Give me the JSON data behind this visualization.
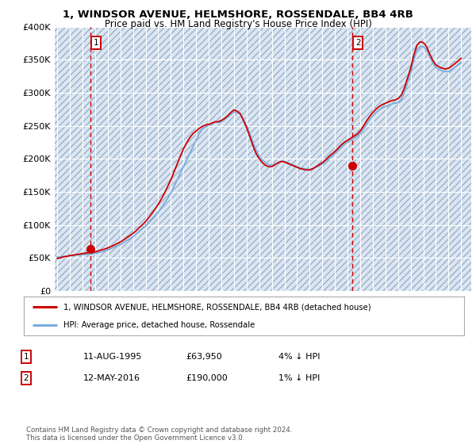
{
  "title_line1": "1, WINDSOR AVENUE, HELMSHORE, ROSSENDALE, BB4 4RB",
  "title_line2": "Price paid vs. HM Land Registry's House Price Index (HPI)",
  "background_color": "#ffffff",
  "plot_bg_color": "#dce6f1",
  "grid_color": "#ffffff",
  "purchase1_date": 1995.62,
  "purchase1_price": 63950,
  "purchase1_label": "1",
  "purchase2_date": 2016.37,
  "purchase2_price": 190000,
  "purchase2_label": "2",
  "xmin": 1992.8,
  "xmax": 2025.8,
  "ymin": 0,
  "ymax": 400000,
  "yticks": [
    0,
    50000,
    100000,
    150000,
    200000,
    250000,
    300000,
    350000,
    400000
  ],
  "ytick_labels": [
    "£0",
    "£50K",
    "£100K",
    "£150K",
    "£200K",
    "£250K",
    "£300K",
    "£350K",
    "£400K"
  ],
  "line1_color": "#cc0000",
  "line2_color": "#7aaddd",
  "marker_color": "#cc0000",
  "vline_color": "#cc0000",
  "legend_line1": "1, WINDSOR AVENUE, HELMSHORE, ROSSENDALE, BB4 4RB (detached house)",
  "legend_line2": "HPI: Average price, detached house, Rossendale",
  "table_row1": [
    "1",
    "11-AUG-1995",
    "£63,950",
    "4% ↓ HPI"
  ],
  "table_row2": [
    "2",
    "12-MAY-2016",
    "£190,000",
    "1% ↓ HPI"
  ],
  "footer": "Contains HM Land Registry data © Crown copyright and database right 2024.\nThis data is licensed under the Open Government Licence v3.0.",
  "hpi_x": [
    1993.0,
    1993.25,
    1993.5,
    1993.75,
    1994.0,
    1994.25,
    1994.5,
    1994.75,
    1995.0,
    1995.25,
    1995.5,
    1995.75,
    1996.0,
    1996.25,
    1996.5,
    1996.75,
    1997.0,
    1997.25,
    1997.5,
    1997.75,
    1998.0,
    1998.25,
    1998.5,
    1998.75,
    1999.0,
    1999.25,
    1999.5,
    1999.75,
    2000.0,
    2000.25,
    2000.5,
    2000.75,
    2001.0,
    2001.25,
    2001.5,
    2001.75,
    2002.0,
    2002.25,
    2002.5,
    2002.75,
    2003.0,
    2003.25,
    2003.5,
    2003.75,
    2004.0,
    2004.25,
    2004.5,
    2004.75,
    2005.0,
    2005.25,
    2005.5,
    2005.75,
    2006.0,
    2006.25,
    2006.5,
    2006.75,
    2007.0,
    2007.25,
    2007.5,
    2007.75,
    2008.0,
    2008.25,
    2008.5,
    2008.75,
    2009.0,
    2009.25,
    2009.5,
    2009.75,
    2010.0,
    2010.25,
    2010.5,
    2010.75,
    2011.0,
    2011.25,
    2011.5,
    2011.75,
    2012.0,
    2012.25,
    2012.5,
    2012.75,
    2013.0,
    2013.25,
    2013.5,
    2013.75,
    2014.0,
    2014.25,
    2014.5,
    2014.75,
    2015.0,
    2015.25,
    2015.5,
    2015.75,
    2016.0,
    2016.25,
    2016.5,
    2016.75,
    2017.0,
    2017.25,
    2017.5,
    2017.75,
    2018.0,
    2018.25,
    2018.5,
    2018.75,
    2019.0,
    2019.25,
    2019.5,
    2019.75,
    2020.0,
    2020.25,
    2020.5,
    2020.75,
    2021.0,
    2021.25,
    2021.5,
    2021.75,
    2022.0,
    2022.25,
    2022.5,
    2022.75,
    2023.0,
    2023.25,
    2023.5,
    2023.75,
    2024.0,
    2024.25,
    2024.5,
    2024.75,
    2025.0
  ],
  "hpi_y": [
    51000,
    51500,
    52000,
    52500,
    53000,
    53500,
    54000,
    54500,
    55000,
    55000,
    55500,
    56000,
    57000,
    58000,
    59000,
    60000,
    62000,
    64000,
    66000,
    68000,
    70000,
    73000,
    76000,
    79000,
    82000,
    86000,
    90000,
    94000,
    98000,
    103000,
    108000,
    113000,
    119000,
    126000,
    133000,
    140000,
    148000,
    158000,
    168000,
    178000,
    188000,
    198000,
    208000,
    218000,
    228000,
    238000,
    245000,
    248000,
    251000,
    253000,
    255000,
    255000,
    256000,
    259000,
    263000,
    267000,
    271000,
    270000,
    268000,
    260000,
    250000,
    238000,
    225000,
    213000,
    204000,
    198000,
    194000,
    191000,
    190000,
    192000,
    194000,
    196000,
    196000,
    194000,
    192000,
    190000,
    188000,
    186000,
    185000,
    184000,
    184000,
    185000,
    187000,
    189000,
    192000,
    196000,
    200000,
    204000,
    208000,
    213000,
    218000,
    222000,
    225000,
    228000,
    231000,
    234000,
    238000,
    245000,
    252000,
    259000,
    265000,
    270000,
    274000,
    277000,
    279000,
    281000,
    283000,
    284000,
    285000,
    290000,
    300000,
    315000,
    330000,
    350000,
    365000,
    370000,
    370000,
    365000,
    355000,
    345000,
    338000,
    335000,
    333000,
    332000,
    332000,
    335000,
    338000,
    342000,
    345000
  ],
  "price_x": [
    1993.0,
    1993.25,
    1993.5,
    1993.75,
    1994.0,
    1994.25,
    1994.5,
    1994.75,
    1995.0,
    1995.25,
    1995.5,
    1995.75,
    1996.0,
    1996.25,
    1996.5,
    1996.75,
    1997.0,
    1997.25,
    1997.5,
    1997.75,
    1998.0,
    1998.25,
    1998.5,
    1998.75,
    1999.0,
    1999.25,
    1999.5,
    1999.75,
    2000.0,
    2000.25,
    2000.5,
    2000.75,
    2001.0,
    2001.25,
    2001.5,
    2001.75,
    2002.0,
    2002.25,
    2002.5,
    2002.75,
    2003.0,
    2003.25,
    2003.5,
    2003.75,
    2004.0,
    2004.25,
    2004.5,
    2004.75,
    2005.0,
    2005.25,
    2005.5,
    2005.75,
    2006.0,
    2006.25,
    2006.5,
    2006.75,
    2007.0,
    2007.25,
    2007.5,
    2007.75,
    2008.0,
    2008.25,
    2008.5,
    2008.75,
    2009.0,
    2009.25,
    2009.5,
    2009.75,
    2010.0,
    2010.25,
    2010.5,
    2010.75,
    2011.0,
    2011.25,
    2011.5,
    2011.75,
    2012.0,
    2012.25,
    2012.5,
    2012.75,
    2013.0,
    2013.25,
    2013.5,
    2013.75,
    2014.0,
    2014.25,
    2014.5,
    2014.75,
    2015.0,
    2015.25,
    2015.5,
    2015.75,
    2016.0,
    2016.25,
    2016.5,
    2016.75,
    2017.0,
    2017.25,
    2017.5,
    2017.75,
    2018.0,
    2018.25,
    2018.5,
    2018.75,
    2019.0,
    2019.25,
    2019.5,
    2019.75,
    2020.0,
    2020.25,
    2020.5,
    2020.75,
    2021.0,
    2021.25,
    2021.5,
    2021.75,
    2022.0,
    2022.25,
    2022.5,
    2022.75,
    2023.0,
    2023.25,
    2023.5,
    2023.75,
    2024.0,
    2024.25,
    2024.5,
    2024.75,
    2025.0
  ],
  "price_y": [
    49000,
    50000,
    51500,
    52000,
    53500,
    54000,
    55000,
    55500,
    56500,
    57000,
    58000,
    58000,
    59000,
    60500,
    62000,
    63000,
    65000,
    67000,
    69000,
    71500,
    74000,
    77000,
    80500,
    83500,
    87000,
    91000,
    96000,
    100000,
    105000,
    111000,
    117000,
    124000,
    131000,
    139000,
    148000,
    158000,
    168000,
    180000,
    192000,
    204000,
    215000,
    224000,
    232000,
    238000,
    242000,
    246000,
    249000,
    251000,
    252000,
    254000,
    256000,
    256000,
    258000,
    261000,
    265000,
    270000,
    274000,
    272000,
    268000,
    258000,
    247000,
    234000,
    220000,
    208000,
    200000,
    194000,
    190000,
    188000,
    188000,
    191000,
    194000,
    196000,
    195000,
    193000,
    191000,
    189000,
    187000,
    185000,
    184000,
    183000,
    183000,
    185000,
    188000,
    191000,
    194000,
    198000,
    203000,
    207000,
    211000,
    216000,
    221000,
    225000,
    228000,
    231000,
    234000,
    237000,
    242000,
    249000,
    257000,
    264000,
    270000,
    275000,
    279000,
    282000,
    284000,
    286000,
    288000,
    289000,
    291000,
    296000,
    307000,
    322000,
    337000,
    357000,
    372000,
    377000,
    376000,
    370000,
    359000,
    349000,
    342000,
    339000,
    337000,
    336000,
    337000,
    340000,
    344000,
    348000,
    352000
  ]
}
